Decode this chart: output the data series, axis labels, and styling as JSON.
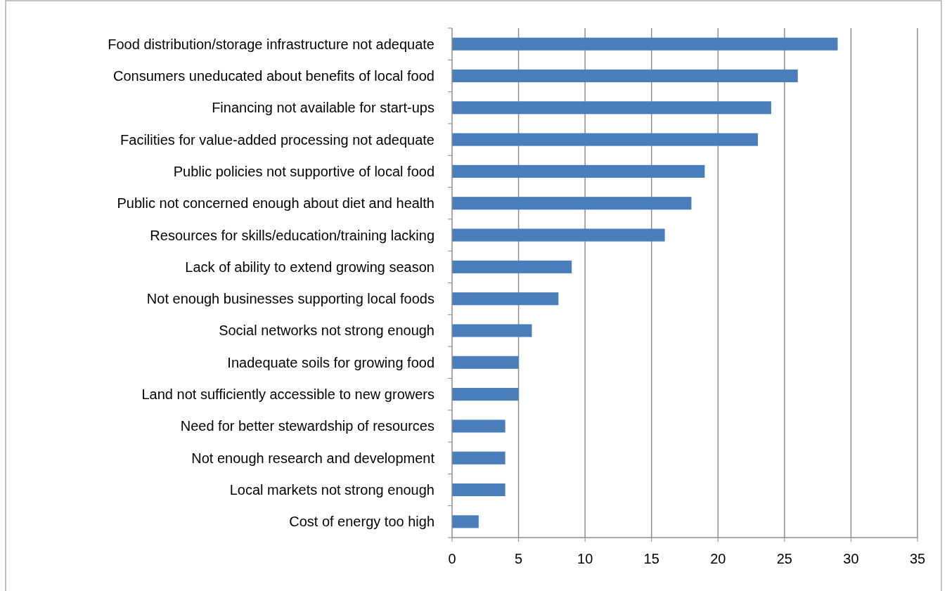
{
  "chart_data": {
    "type": "bar",
    "orientation": "horizontal",
    "categories": [
      "Food distribution/storage infrastructure not adequate",
      "Consumers uneducated about benefits of local food",
      "Financing not available for start-ups",
      "Facilities for value-added processing not adequate",
      "Public policies not supportive of local food",
      "Public not concerned enough about diet and health",
      "Resources for skills/education/training lacking",
      "Lack of ability to extend growing season",
      "Not enough businesses supporting local foods",
      "Social networks not strong enough",
      "Inadequate soils for growing food",
      "Land not sufficiently accessible to new growers",
      "Need for better stewardship of resources",
      "Not enough research and development",
      "Local markets not strong enough",
      "Cost of energy too high"
    ],
    "values": [
      29,
      26,
      24,
      23,
      19,
      18,
      16,
      9,
      8,
      6,
      5,
      5,
      4,
      4,
      4,
      2
    ],
    "color": "#4a7ebb",
    "xlim": [
      0,
      35
    ],
    "xticks": [
      0,
      5,
      10,
      15,
      20,
      25,
      30,
      35
    ],
    "grid": "x"
  }
}
